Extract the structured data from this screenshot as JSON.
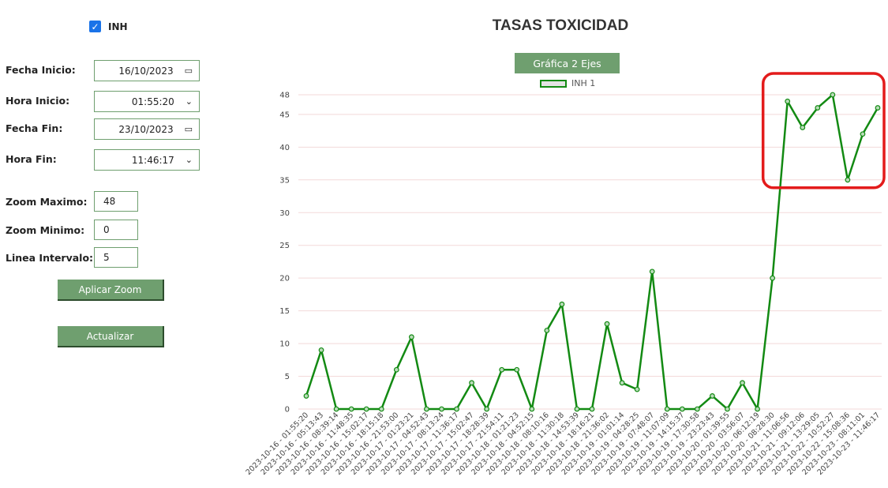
{
  "controls": {
    "inh_label": "INH",
    "inh_checked": true,
    "fecha_inicio_label": "Fecha Inicio:",
    "fecha_inicio_value": "16/10/2023",
    "hora_inicio_label": "Hora Inicio:",
    "hora_inicio_value": "01:55:20",
    "fecha_fin_label": "Fecha Fin:",
    "fecha_fin_value": "23/10/2023",
    "hora_fin_label": "Hora Fin:",
    "hora_fin_value": "11:46:17",
    "zoom_max_label": "Zoom Maximo:",
    "zoom_max_value": "48",
    "zoom_min_label": "Zoom Minimo:",
    "zoom_min_value": "0",
    "linea_intervalo_label": "Linea Intervalo:",
    "linea_intervalo_value": "5",
    "aplicar_zoom_label": "Aplicar Zoom",
    "actualizar_label": "Actualizar"
  },
  "chart_title": "TASAS TOXICIDAD",
  "chart_button_label": "Gráfica 2 Ejes",
  "colors": {
    "line": "#138a13",
    "button": "#6f9f6f",
    "highlight": "#e31b1b",
    "checkbox": "#1a73e8"
  },
  "chart_data": {
    "type": "line",
    "title": "",
    "xlabel": "",
    "ylabel": "",
    "ylim": [
      0,
      48
    ],
    "yticks": [
      0,
      5,
      10,
      15,
      20,
      25,
      30,
      35,
      40,
      45,
      48
    ],
    "grid": true,
    "legend_position": "top-center",
    "x": [
      "2023-10-16 - 01:55:20",
      "2023-10-16 - 05:13:43",
      "2023-10-16 - 08:39:14",
      "2023-10-16 - 11:48:35",
      "2023-10-16 - 15:02:17",
      "2023-10-16 - 18:15:18",
      "2023-10-16 - 21:53:00",
      "2023-10-17 - 01:23:21",
      "2023-10-17 - 04:52:43",
      "2023-10-17 - 08:13:24",
      "2023-10-17 - 11:36:17",
      "2023-10-17 - 15:02:47",
      "2023-10-17 - 18:28:39",
      "2023-10-17 - 21:54:11",
      "2023-10-18 - 01:21:23",
      "2023-10-18 - 04:52:15",
      "2023-10-18 - 08:10:16",
      "2023-10-18 - 11:30:18",
      "2023-10-18 - 14:53:39",
      "2023-10-18 - 18:16:21",
      "2023-10-18 - 21:36:02",
      "2023-10-19 - 01:01:14",
      "2023-10-19 - 04:28:25",
      "2023-10-19 - 07:48:07",
      "2023-10-19 - 11:07:09",
      "2023-10-19 - 14:15:37",
      "2023-10-19 - 17:30:58",
      "2023-10-19 - 23:23:43",
      "2023-10-20 - 01:39:55",
      "2023-10-20 - 03:56:07",
      "2023-10-20 - 06:12:19",
      "2023-10-20 - 08:28:30",
      "2023-10-21 - 11:06:56",
      "2023-10-21 - 09:12:06",
      "2023-10-21 - 13:29:05",
      "2023-10-22 - 10:52:27",
      "2023-10-22 - 15:08:36",
      "2023-10-23 - 08:11:01",
      "2023-10-23 - 11:46:17"
    ],
    "series": [
      {
        "name": "INH 1",
        "values": [
          2,
          9,
          0,
          0,
          0,
          0,
          6,
          11,
          0,
          0,
          0,
          4,
          0,
          6,
          6,
          0,
          12,
          16,
          0,
          0,
          13,
          4,
          3,
          21,
          0,
          0,
          0,
          2,
          0,
          4,
          0,
          20,
          47,
          43,
          46,
          48,
          35,
          42,
          46
        ]
      }
    ],
    "annotations": [
      {
        "type": "highlight-box",
        "covers_series_points": [
          32,
          38
        ]
      }
    ]
  }
}
